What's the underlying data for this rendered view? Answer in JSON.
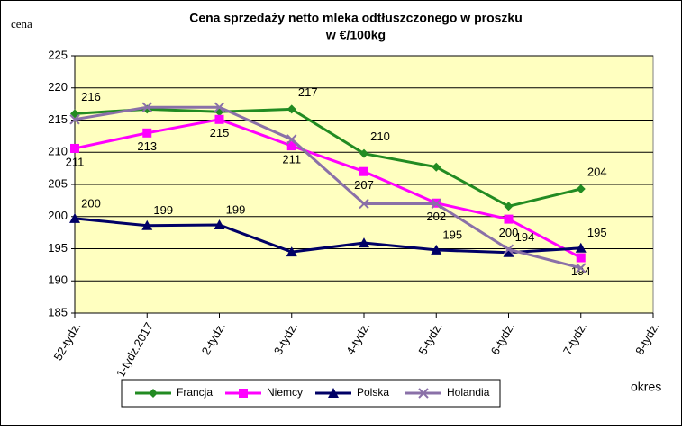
{
  "chart_data": {
    "type": "line",
    "title": "Cena sprzedaży netto mleka odtłuszczonego w proszku",
    "subtitle": "w €/100kg",
    "y_label": "cena",
    "x_label": "okres",
    "categories": [
      "52-tydz.",
      "1-tydz.2017",
      "2-tydz.",
      "3-tydz.",
      "4-tydz.",
      "5-tydz.",
      "6-tydz.",
      "7-tydz.",
      "8-tydz."
    ],
    "series": [
      {
        "name": "Francja",
        "color": "#228b22",
        "marker": "diamond",
        "values": [
          216.0,
          216.7,
          216.3,
          216.7,
          209.8,
          207.7,
          201.6,
          204.3,
          null
        ],
        "value_labels": [
          "216",
          null,
          null,
          "217",
          "210",
          null,
          null,
          "204",
          null
        ]
      },
      {
        "name": "Niemcy",
        "color": "#ff00ff",
        "marker": "square",
        "values": [
          210.6,
          213.0,
          215.1,
          211.0,
          207.0,
          202.1,
          199.6,
          193.6,
          null
        ],
        "value_labels": [
          "211",
          "213",
          "215",
          "211",
          "207",
          "202",
          "200",
          "194",
          null
        ]
      },
      {
        "name": "Polska",
        "color": "#000066",
        "marker": "triangle",
        "values": [
          199.7,
          198.6,
          198.7,
          194.5,
          195.9,
          194.8,
          194.4,
          195.1,
          null
        ],
        "value_labels": [
          "200",
          "199",
          "199",
          null,
          null,
          "195",
          "194",
          "195",
          null
        ]
      },
      {
        "name": "Holandia",
        "color": "#8a70a8",
        "marker": "x",
        "values": [
          215.1,
          217.0,
          217.0,
          212.0,
          202.0,
          202.0,
          194.9,
          192.0,
          null
        ]
      }
    ],
    "ylim": [
      185,
      225
    ],
    "yticks": [
      185,
      190,
      195,
      200,
      205,
      210,
      215,
      220,
      225
    ],
    "grid": true
  }
}
